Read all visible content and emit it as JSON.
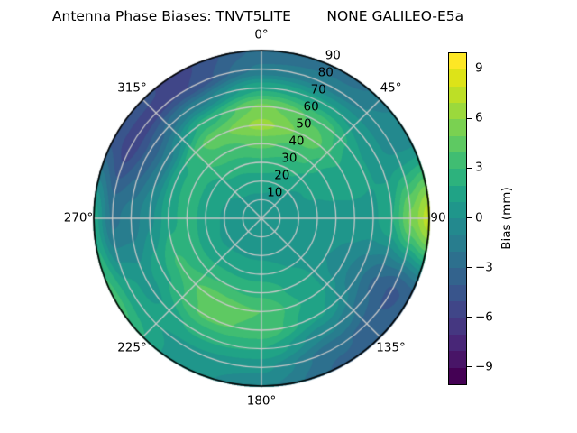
{
  "title": "Antenna Phase Biases: TNVT5LITE        NONE GALILEO-E5a",
  "background": "#ffffff",
  "chart_data": {
    "type": "heatmap",
    "projection": "polar",
    "title": "Antenna Phase Biases: TNVT5LITE        NONE GALILEO-E5a",
    "theta_ticks": [
      {
        "label": "0°",
        "angle_deg": 0
      },
      {
        "label": "45°",
        "angle_deg": 45
      },
      {
        "label": "90",
        "angle_deg": 90
      },
      {
        "label": "135°",
        "angle_deg": 135
      },
      {
        "label": "180°",
        "angle_deg": 180
      },
      {
        "label": "225°",
        "angle_deg": 225
      },
      {
        "label": "270°",
        "angle_deg": 270
      },
      {
        "label": "315°",
        "angle_deg": 315
      }
    ],
    "r_ticks": [
      {
        "label": "10",
        "value": 10
      },
      {
        "label": "20",
        "value": 20
      },
      {
        "label": "30",
        "value": 30
      },
      {
        "label": "40",
        "value": 40
      },
      {
        "label": "50",
        "value": 50
      },
      {
        "label": "60",
        "value": 60
      },
      {
        "label": "70",
        "value": 70
      },
      {
        "label": "80",
        "value": 80
      },
      {
        "label": "90",
        "value": 90
      }
    ],
    "r_max": 90,
    "grid": true,
    "grid_color": "#c9c9c9",
    "azimuth_deg": [
      0,
      30,
      60,
      90,
      120,
      150,
      180,
      210,
      240,
      270,
      300,
      330
    ],
    "radius": [
      0,
      10,
      20,
      30,
      40,
      50,
      60,
      70,
      80,
      90
    ],
    "bias_mm": [
      [
        0.5,
        0.8,
        1.5,
        2.8,
        4.2,
        6.3,
        5.2,
        1.8,
        -1.8,
        -2.8
      ],
      [
        0.5,
        0.7,
        1.2,
        2.2,
        3.5,
        4.6,
        3.8,
        1.2,
        -1.5,
        -2.5
      ],
      [
        0.5,
        0.6,
        0.8,
        1.2,
        1.5,
        1.8,
        1.2,
        0.2,
        -0.3,
        -0.5
      ],
      [
        0.5,
        0.5,
        0.5,
        0.5,
        0.6,
        0.6,
        0.8,
        2.0,
        5.2,
        7.6
      ],
      [
        0.5,
        0.5,
        0.4,
        0.3,
        0.0,
        -0.6,
        -1.8,
        -3.2,
        -4.2,
        -3.8
      ],
      [
        0.5,
        0.6,
        0.7,
        1.0,
        1.5,
        1.8,
        1.2,
        -0.8,
        -2.8,
        -3.2
      ],
      [
        0.5,
        0.7,
        0.9,
        1.6,
        2.8,
        4.0,
        3.8,
        2.0,
        0.2,
        -0.8
      ],
      [
        0.5,
        0.7,
        0.9,
        1.6,
        3.0,
        4.6,
        4.2,
        2.2,
        0.8,
        0.6
      ],
      [
        0.5,
        0.7,
        0.8,
        1.3,
        2.5,
        3.2,
        1.8,
        0.6,
        1.4,
        3.4
      ],
      [
        0.5,
        0.7,
        0.9,
        1.6,
        2.5,
        1.6,
        -0.2,
        -1.6,
        -2.2,
        1.5
      ],
      [
        0.5,
        0.7,
        1.0,
        1.7,
        2.4,
        1.8,
        -1.6,
        -3.8,
        -5.6,
        -4.4
      ],
      [
        0.5,
        0.8,
        1.3,
        2.3,
        3.6,
        4.6,
        2.4,
        -1.4,
        -5.0,
        -5.2
      ]
    ],
    "levels": {
      "min": -10,
      "max": 10,
      "step": 1
    },
    "colormap": "viridis",
    "colormap_colors": [
      "#440154",
      "#481567",
      "#482677",
      "#453781",
      "#404688",
      "#39558c",
      "#33638d",
      "#2d708e",
      "#287d8e",
      "#23898e",
      "#1f968b",
      "#20a386",
      "#2db27d",
      "#40bd72",
      "#5ec962",
      "#7ad151",
      "#9bd93c",
      "#bddf26",
      "#dde318",
      "#fde725"
    ],
    "colorbar": {
      "label": "Bias (mm)",
      "tick_labels": [
        "9",
        "6",
        "3",
        "0",
        "−3",
        "−6",
        "−9"
      ],
      "tick_values": [
        9,
        6,
        3,
        0,
        -3,
        -6,
        -9
      ]
    }
  }
}
